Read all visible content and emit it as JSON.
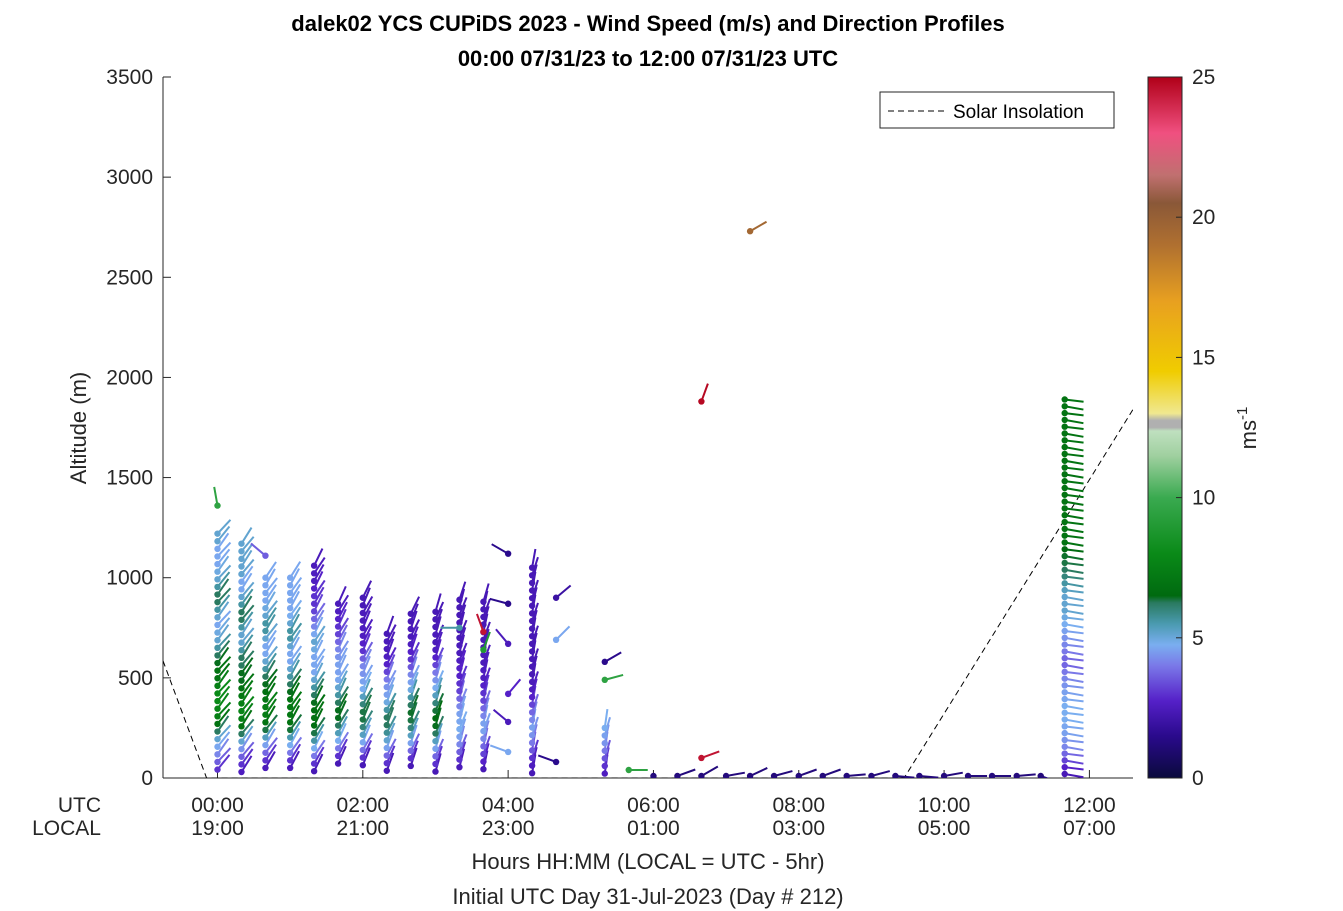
{
  "chart_data": {
    "type": "scatter",
    "title": "dalek02 YCS CUPiDS 2023 - Wind Speed (m/s) and Direction Profiles",
    "subtitle": "00:00 07/31/23 to 12:00 07/31/23  UTC",
    "ylabel": "Altitude (m)",
    "xlabel": "Hours HH:MM  (LOCAL = UTC - 5hr)",
    "xlabel2": "Initial UTC Day 31-Jul-2023 (Day # 212)",
    "x_row_labels": {
      "utc": "UTC",
      "local": "LOCAL"
    },
    "x_ticks_utc": [
      "00:00",
      "02:00",
      "04:00",
      "06:00",
      "08:00",
      "10:00",
      "12:00"
    ],
    "x_ticks_local": [
      "19:00",
      "21:00",
      "23:00",
      "01:00",
      "03:00",
      "05:00",
      "07:00"
    ],
    "x_tick_hours": [
      0,
      2,
      4,
      6,
      8,
      10,
      12
    ],
    "xlim_hours": [
      -0.75,
      12.6
    ],
    "yticks": [
      "0",
      "500",
      "1000",
      "1500",
      "2000",
      "2500",
      "3000",
      "3500"
    ],
    "ylim": [
      0,
      3500
    ],
    "grid": false,
    "legend": {
      "position": "top-right",
      "entries": [
        "Solar Insolation"
      ]
    },
    "colorbar": {
      "label": "ms",
      "label_superscript": "-1",
      "ticks": [
        "0",
        "5",
        "10",
        "15",
        "20",
        "25"
      ],
      "range": [
        0,
        25
      ]
    },
    "solar_insolation": {
      "x_hours": [
        -0.75,
        -0.15,
        9.45,
        12.6
      ],
      "y": [
        585,
        0,
        0,
        1840
      ]
    },
    "profiles": [
      {
        "t": 0.0,
        "top": 1220,
        "step": 38,
        "spd": [
          2.8,
          3.0,
          3.5,
          4.0,
          4.5,
          5.0,
          6.0,
          7.0,
          7.5,
          7.8,
          8.0,
          8.0,
          7.5,
          7.0,
          7.0,
          6.5,
          6.0,
          5.5,
          5.0,
          4.8,
          4.5,
          5.0,
          5.5,
          6.0,
          6.0,
          5.5,
          5.0,
          4.8,
          4.5,
          4.5,
          4.5,
          5.0,
          5.0
        ],
        "dir": 215
      },
      {
        "t": 0.33,
        "top": 1170,
        "step": 38,
        "spd": [
          2.6,
          3.0,
          3.5,
          4.2,
          5.0,
          6.0,
          7.0,
          7.5,
          7.8,
          7.5,
          7.2,
          7.0,
          6.5,
          6.5,
          6.0,
          6.0,
          5.5,
          5.0,
          5.0,
          5.5,
          6.0,
          6.0,
          5.5,
          5.0,
          4.5,
          4.5,
          5.0,
          5.0,
          5.0,
          5.0,
          5.0
        ],
        "dir": 212
      },
      {
        "t": 0.66,
        "top": 1000,
        "step": 38,
        "spd": [
          2.5,
          3.0,
          3.6,
          4.4,
          5.2,
          6.2,
          7.0,
          7.4,
          7.5,
          7.0,
          6.8,
          6.5,
          6.0,
          5.5,
          5.0,
          4.5,
          4.5,
          5.0,
          5.5,
          5.5,
          5.0,
          4.8,
          4.5,
          4.5,
          4.5,
          4.5
        ],
        "dir": 210
      },
      {
        "t": 1.0,
        "top": 1000,
        "step": 38,
        "spd": [
          2.5,
          3.0,
          3.8,
          4.6,
          5.4,
          6.3,
          7.0,
          7.2,
          7.2,
          7.0,
          6.5,
          6.0,
          5.5,
          5.0,
          4.5,
          4.5,
          5.0,
          5.5,
          5.5,
          5.0,
          4.6,
          4.5,
          4.5,
          4.5,
          4.5,
          4.5
        ],
        "dir": 208
      },
      {
        "t": 1.33,
        "top": 1060,
        "step": 38,
        "spd": [
          2.4,
          3.0,
          3.8,
          4.6,
          5.5,
          6.2,
          6.8,
          7.0,
          6.8,
          6.5,
          6.0,
          5.5,
          5.0,
          4.5,
          4.5,
          4.5,
          4.8,
          5.0,
          4.5,
          4.0,
          3.6,
          3.2,
          3.0,
          3.0,
          2.8,
          2.6,
          2.6,
          2.5
        ],
        "dir": 206
      },
      {
        "t": 1.66,
        "top": 870,
        "step": 38,
        "spd": [
          2.4,
          3.0,
          3.8,
          4.6,
          5.3,
          6.0,
          6.5,
          6.5,
          6.0,
          5.5,
          5.0,
          4.5,
          4.4,
          4.4,
          4.2,
          4.0,
          3.6,
          3.2,
          3.0,
          2.8,
          2.6,
          2.5
        ],
        "dir": 204
      },
      {
        "t": 2.0,
        "top": 900,
        "step": 38,
        "spd": [
          2.4,
          3.0,
          3.7,
          4.5,
          5.2,
          5.8,
          6.2,
          6.2,
          5.8,
          5.2,
          4.6,
          4.4,
          4.2,
          4.0,
          3.5,
          3.0,
          2.8,
          2.6,
          2.6,
          2.5,
          2.5,
          2.4,
          2.4
        ],
        "dir": 202
      },
      {
        "t": 2.33,
        "top": 720,
        "step": 38,
        "spd": [
          2.4,
          3.0,
          3.6,
          4.4,
          5.0,
          5.6,
          6.0,
          6.0,
          5.5,
          4.8,
          4.4,
          4.2,
          3.8,
          3.2,
          2.8,
          2.6,
          2.5,
          2.5,
          2.4
        ],
        "dir": 200
      },
      {
        "t": 2.66,
        "top": 820,
        "step": 38,
        "spd": [
          2.4,
          3.0,
          3.6,
          4.4,
          5.2,
          5.8,
          6.2,
          6.4,
          6.0,
          5.5,
          4.8,
          4.4,
          4.0,
          3.4,
          3.0,
          2.8,
          2.6,
          2.5,
          2.5,
          2.4,
          2.4
        ],
        "dir": 198
      },
      {
        "t": 3.0,
        "top": 830,
        "step": 38,
        "spd": [
          2.4,
          3.0,
          3.6,
          4.4,
          5.2,
          6.0,
          6.5,
          6.6,
          6.3,
          5.8,
          5.2,
          4.6,
          4.2,
          3.8,
          3.2,
          2.8,
          2.6,
          2.5,
          2.5,
          2.4,
          2.4,
          2.4
        ],
        "dir": 196
      },
      {
        "t": 3.33,
        "top": 890,
        "step": 38,
        "spd": [
          2.5,
          3.0,
          3.5,
          4.0,
          4.4,
          4.6,
          4.5,
          4.4,
          4.0,
          3.6,
          3.2,
          3.0,
          2.8,
          2.8,
          2.6,
          2.5,
          2.5,
          2.4,
          2.4,
          2.4,
          2.4,
          2.4,
          2.4
        ],
        "dir": 194
      },
      {
        "t": 3.66,
        "top": 880,
        "step": 38,
        "spd": [
          2.4,
          2.8,
          3.2,
          3.6,
          4.0,
          4.4,
          4.4,
          4.0,
          3.6,
          3.2,
          3.0,
          2.8,
          2.6,
          2.6,
          2.5,
          2.5,
          2.4,
          2.4,
          2.4,
          2.4,
          2.4,
          2.4,
          2.4
        ],
        "dir": 192
      },
      {
        "t": 4.33,
        "top": 1050,
        "step": 38,
        "spd": [
          2.4,
          2.6,
          3.0,
          3.4,
          3.8,
          4.2,
          4.4,
          4.0,
          3.6,
          3.2,
          2.8,
          2.6,
          2.5,
          2.4,
          2.4,
          2.4,
          2.4,
          2.4,
          2.4,
          2.4,
          2.4,
          2.4,
          2.4,
          2.4,
          2.4,
          2.4,
          2.4,
          2.4
        ],
        "dir": 190
      },
      {
        "t": 5.33,
        "top": 250,
        "step": 38,
        "spd": [
          2.6,
          3.0,
          3.4,
          3.8,
          4.2,
          4.4,
          4.6
        ],
        "dir": 188
      }
    ],
    "extra_points": [
      {
        "t": 0.0,
        "alt": 1360,
        "spd": 9.5,
        "dir": 170
      },
      {
        "t": 0.66,
        "alt": 1110,
        "spd": 3.5,
        "dir": 130
      },
      {
        "t": 3.33,
        "alt": 750,
        "spd": 5.5,
        "dir": 90
      },
      {
        "t": 3.66,
        "alt": 730,
        "spd": 24.5,
        "dir": 160
      },
      {
        "t": 3.66,
        "alt": 640,
        "spd": 9.0,
        "dir": 200
      },
      {
        "t": 4.0,
        "alt": 1120,
        "spd": 1.5,
        "dir": 120
      },
      {
        "t": 4.0,
        "alt": 870,
        "spd": 1.5,
        "dir": 105
      },
      {
        "t": 4.0,
        "alt": 670,
        "spd": 2.5,
        "dir": 140
      },
      {
        "t": 4.0,
        "alt": 420,
        "spd": 2.8,
        "dir": 220
      },
      {
        "t": 4.0,
        "alt": 280,
        "spd": 2.5,
        "dir": 130
      },
      {
        "t": 4.0,
        "alt": 130,
        "spd": 4.5,
        "dir": 110
      },
      {
        "t": 4.66,
        "alt": 900,
        "spd": 2.0,
        "dir": 230
      },
      {
        "t": 4.66,
        "alt": 690,
        "spd": 4.5,
        "dir": 225
      },
      {
        "t": 4.66,
        "alt": 80,
        "spd": 1.5,
        "dir": 110
      },
      {
        "t": 5.33,
        "alt": 580,
        "spd": 1.5,
        "dir": 240
      },
      {
        "t": 5.33,
        "alt": 490,
        "spd": 9.5,
        "dir": 255
      },
      {
        "t": 5.66,
        "alt": 40,
        "spd": 9.5,
        "dir": 270
      },
      {
        "t": 6.66,
        "alt": 1880,
        "spd": 24.8,
        "dir": 200
      },
      {
        "t": 7.33,
        "alt": 2730,
        "spd": 19.5,
        "dir": 240
      },
      {
        "t": 6.66,
        "alt": 100,
        "spd": 24.5,
        "dir": 250
      }
    ],
    "surface_row": {
      "alt": 10,
      "spd": 1.2,
      "t": [
        6.0,
        6.33,
        6.66,
        7.0,
        7.33,
        7.66,
        8.0,
        8.33,
        8.66,
        9.0,
        9.33,
        9.66,
        10.0,
        10.33,
        10.66,
        11.0,
        11.33
      ],
      "dir": [
        330,
        250,
        240,
        260,
        245,
        255,
        250,
        250,
        265,
        255,
        275,
        275,
        260,
        270,
        270,
        265,
        290
      ]
    },
    "late_profile": {
      "t": 11.66,
      "bottom": 20,
      "step": 34,
      "spd": [
        2.4,
        2.8,
        3.2,
        3.6,
        4.0,
        4.2,
        4.4,
        4.5,
        4.6,
        4.6,
        4.6,
        4.5,
        4.4,
        4.2,
        4.0,
        3.8,
        3.6,
        3.6,
        3.8,
        4.0,
        4.2,
        4.4,
        4.6,
        4.8,
        5.0,
        5.0,
        5.0,
        5.2,
        5.5,
        5.8,
        6.0,
        6.2,
        6.4,
        6.6,
        7.0,
        7.0,
        7.0,
        7.0,
        7.0,
        7.0,
        7.0,
        7.0,
        7.0,
        7.0,
        7.0,
        7.0,
        7.0,
        7.0,
        7.0,
        7.0,
        7.0,
        7.0,
        7.0,
        7.0,
        7.0,
        7.0
      ],
      "dir": 280
    }
  }
}
